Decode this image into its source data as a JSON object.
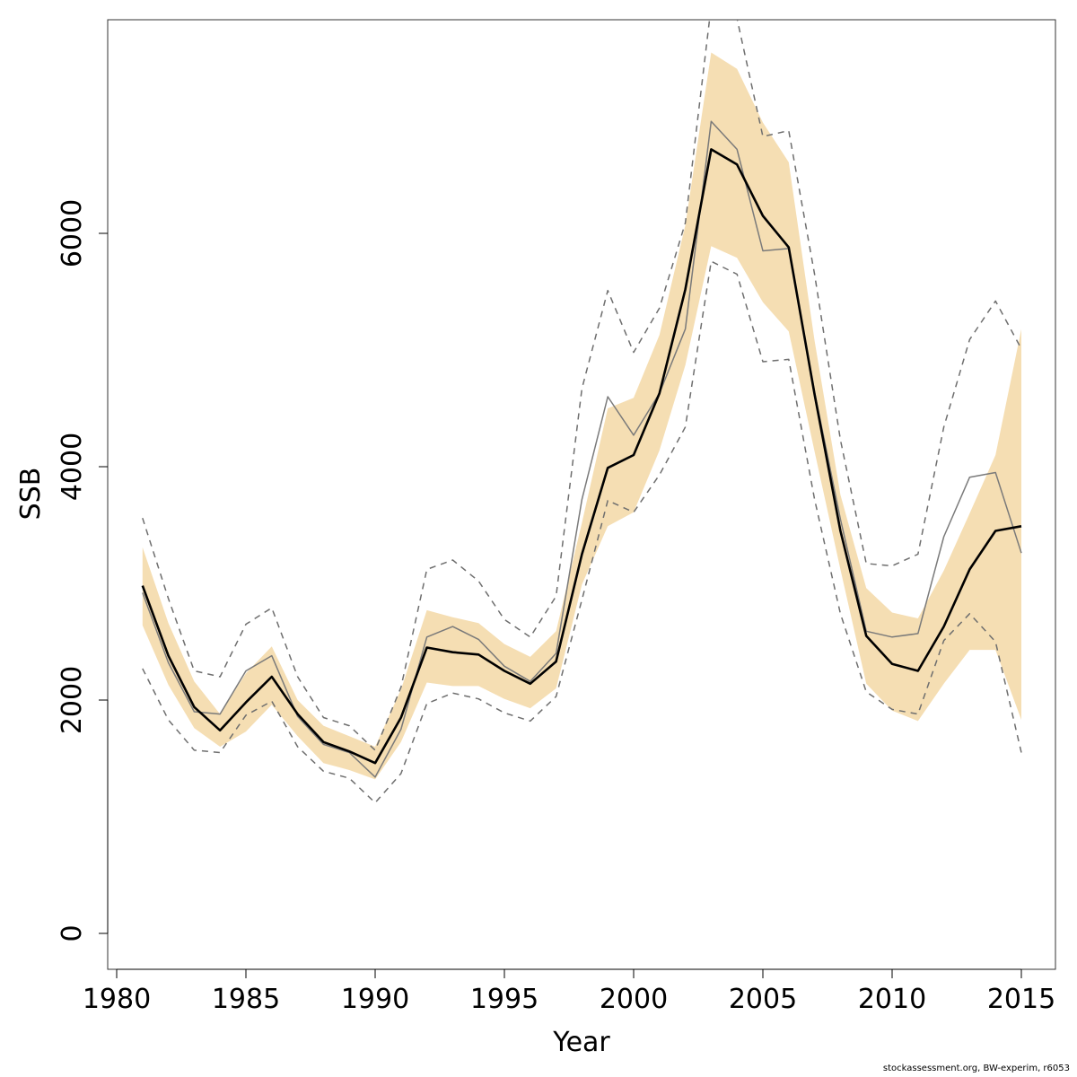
{
  "chart_data": {
    "type": "line",
    "xlabel": "Year",
    "ylabel": "SSB",
    "xlim": [
      1980,
      2016
    ],
    "ylim": [
      -300,
      7800
    ],
    "x_ticks": [
      1980,
      1985,
      1990,
      1995,
      2000,
      2005,
      2010,
      2015
    ],
    "y_ticks": [
      0,
      2000,
      4000,
      6000
    ],
    "years": [
      1981,
      1982,
      1983,
      1984,
      1985,
      1986,
      1987,
      1988,
      1989,
      1990,
      1991,
      1992,
      1993,
      1994,
      1995,
      1996,
      1997,
      1998,
      1999,
      2000,
      2001,
      2002,
      2003,
      2004,
      2005,
      2006,
      2007,
      2008,
      2009,
      2010,
      2011,
      2012,
      2013,
      2014,
      2015
    ],
    "series": [
      {
        "role": "estimate",
        "color": "#000000",
        "values": [
          2980,
          2380,
          1940,
          1740,
          1980,
          2200,
          1880,
          1640,
          1560,
          1460,
          1850,
          2450,
          2410,
          2390,
          2250,
          2140,
          2330,
          3250,
          3990,
          4100,
          4630,
          5520,
          6720,
          6590,
          6150,
          5880,
          4620,
          3450,
          2550,
          2310,
          2250,
          2630,
          3120,
          3450,
          3490
        ]
      },
      {
        "role": "secondary estimate",
        "color": "#7a7a7a",
        "values": [
          2920,
          2320,
          1900,
          1880,
          2250,
          2380,
          1860,
          1620,
          1550,
          1340,
          1750,
          2540,
          2630,
          2520,
          2290,
          2160,
          2400,
          3720,
          4600,
          4270,
          4630,
          5180,
          6960,
          6720,
          5850,
          5870,
          4640,
          3550,
          2590,
          2540,
          2570,
          3400,
          3910,
          3950,
          3260
        ]
      },
      {
        "role": "upper bound (dashed)",
        "color": "#6e6e6e",
        "values": [
          3560,
          2870,
          2250,
          2200,
          2650,
          2790,
          2200,
          1850,
          1780,
          1570,
          2110,
          3120,
          3200,
          3020,
          2690,
          2540,
          2890,
          4670,
          5510,
          4980,
          5360,
          6090,
          7950,
          7840,
          6830,
          6880,
          5650,
          4230,
          3170,
          3150,
          3250,
          4340,
          5090,
          5420,
          5010
        ]
      },
      {
        "role": "lower bound (dashed)",
        "color": "#6e6e6e",
        "values": [
          2270,
          1830,
          1570,
          1550,
          1870,
          1990,
          1600,
          1390,
          1330,
          1120,
          1370,
          1970,
          2060,
          2010,
          1890,
          1820,
          2030,
          2860,
          3710,
          3610,
          3930,
          4340,
          5760,
          5650,
          4900,
          4920,
          3720,
          2740,
          2070,
          1920,
          1880,
          2510,
          2740,
          2500,
          1550
        ]
      }
    ],
    "band": {
      "color": "#f5deb3",
      "upper": [
        3310,
        2660,
        2160,
        1880,
        2230,
        2460,
        2000,
        1780,
        1690,
        1600,
        2090,
        2770,
        2710,
        2660,
        2480,
        2370,
        2590,
        3520,
        4500,
        4590,
        5130,
        6070,
        7550,
        7410,
        6950,
        6610,
        5080,
        3760,
        2960,
        2750,
        2700,
        3110,
        3600,
        4100,
        5180
      ],
      "lower": [
        2640,
        2130,
        1760,
        1600,
        1730,
        1960,
        1690,
        1460,
        1400,
        1320,
        1640,
        2150,
        2120,
        2120,
        2010,
        1930,
        2100,
        2990,
        3490,
        3610,
        4140,
        4870,
        5890,
        5790,
        5410,
        5160,
        4130,
        3120,
        2140,
        1910,
        1820,
        2140,
        2430,
        2430,
        1830
      ]
    }
  },
  "footer": {
    "credit": "stockassessment.org, BW-experim, r6053"
  }
}
